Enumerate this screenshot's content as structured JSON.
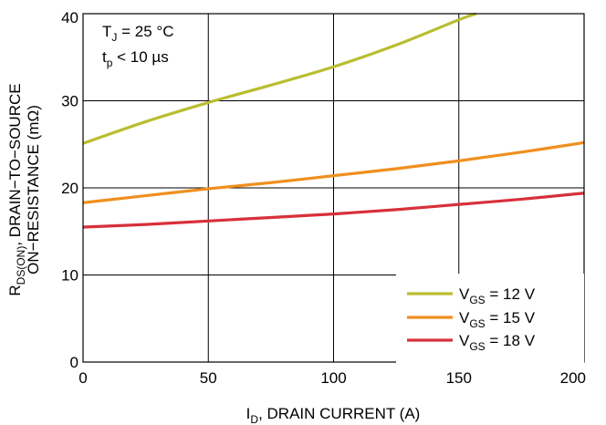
{
  "chart_data": {
    "type": "line",
    "xlabel": {
      "main": "I",
      "sub": "D",
      "rest": ", DRAIN CURRENT (A)"
    },
    "ylabel": {
      "line1_main": "R",
      "line1_sub": "DS(ON)",
      "line1_rest": ", DRAIN−TO−SOURCE",
      "line2": "ON−RESISTANCE (mΩ)"
    },
    "xlim": [
      0,
      200
    ],
    "ylim": [
      0,
      40
    ],
    "xticks": [
      0,
      50,
      100,
      150,
      200
    ],
    "yticks": [
      0,
      10,
      20,
      30,
      40
    ],
    "grid": true,
    "legend_position": "bottom-right",
    "annotations": {
      "tj": {
        "main": "T",
        "sub": "J",
        "rest": " = 25 °C"
      },
      "tp": {
        "main": "t",
        "sub": "p",
        "rest": " < 10 µs"
      }
    },
    "series": [
      {
        "name": "V_GS = 12 V",
        "legend": {
          "main": "V",
          "sub": "GS",
          "rest": " = 12 V"
        },
        "color": "#b9bd2f",
        "x": [
          0,
          25,
          50,
          75,
          100,
          125,
          150,
          157
        ],
        "y": [
          25.1,
          27.6,
          29.8,
          31.8,
          33.9,
          36.4,
          39.3,
          40
        ]
      },
      {
        "name": "V_GS = 15 V",
        "legend": {
          "main": "V",
          "sub": "GS",
          "rest": " = 15 V"
        },
        "color": "#f08f1e",
        "x": [
          0,
          25,
          50,
          75,
          100,
          125,
          150,
          175,
          200
        ],
        "y": [
          18.3,
          19.1,
          19.9,
          20.6,
          21.4,
          22.2,
          23.1,
          24.1,
          25.2
        ]
      },
      {
        "name": "V_GS = 18 V",
        "legend": {
          "main": "V",
          "sub": "GS",
          "rest": " = 18 V"
        },
        "color": "#d7303a",
        "x": [
          0,
          25,
          50,
          75,
          100,
          125,
          150,
          175,
          200
        ],
        "y": [
          15.5,
          15.8,
          16.2,
          16.6,
          17.0,
          17.5,
          18.1,
          18.7,
          19.4
        ]
      }
    ]
  }
}
